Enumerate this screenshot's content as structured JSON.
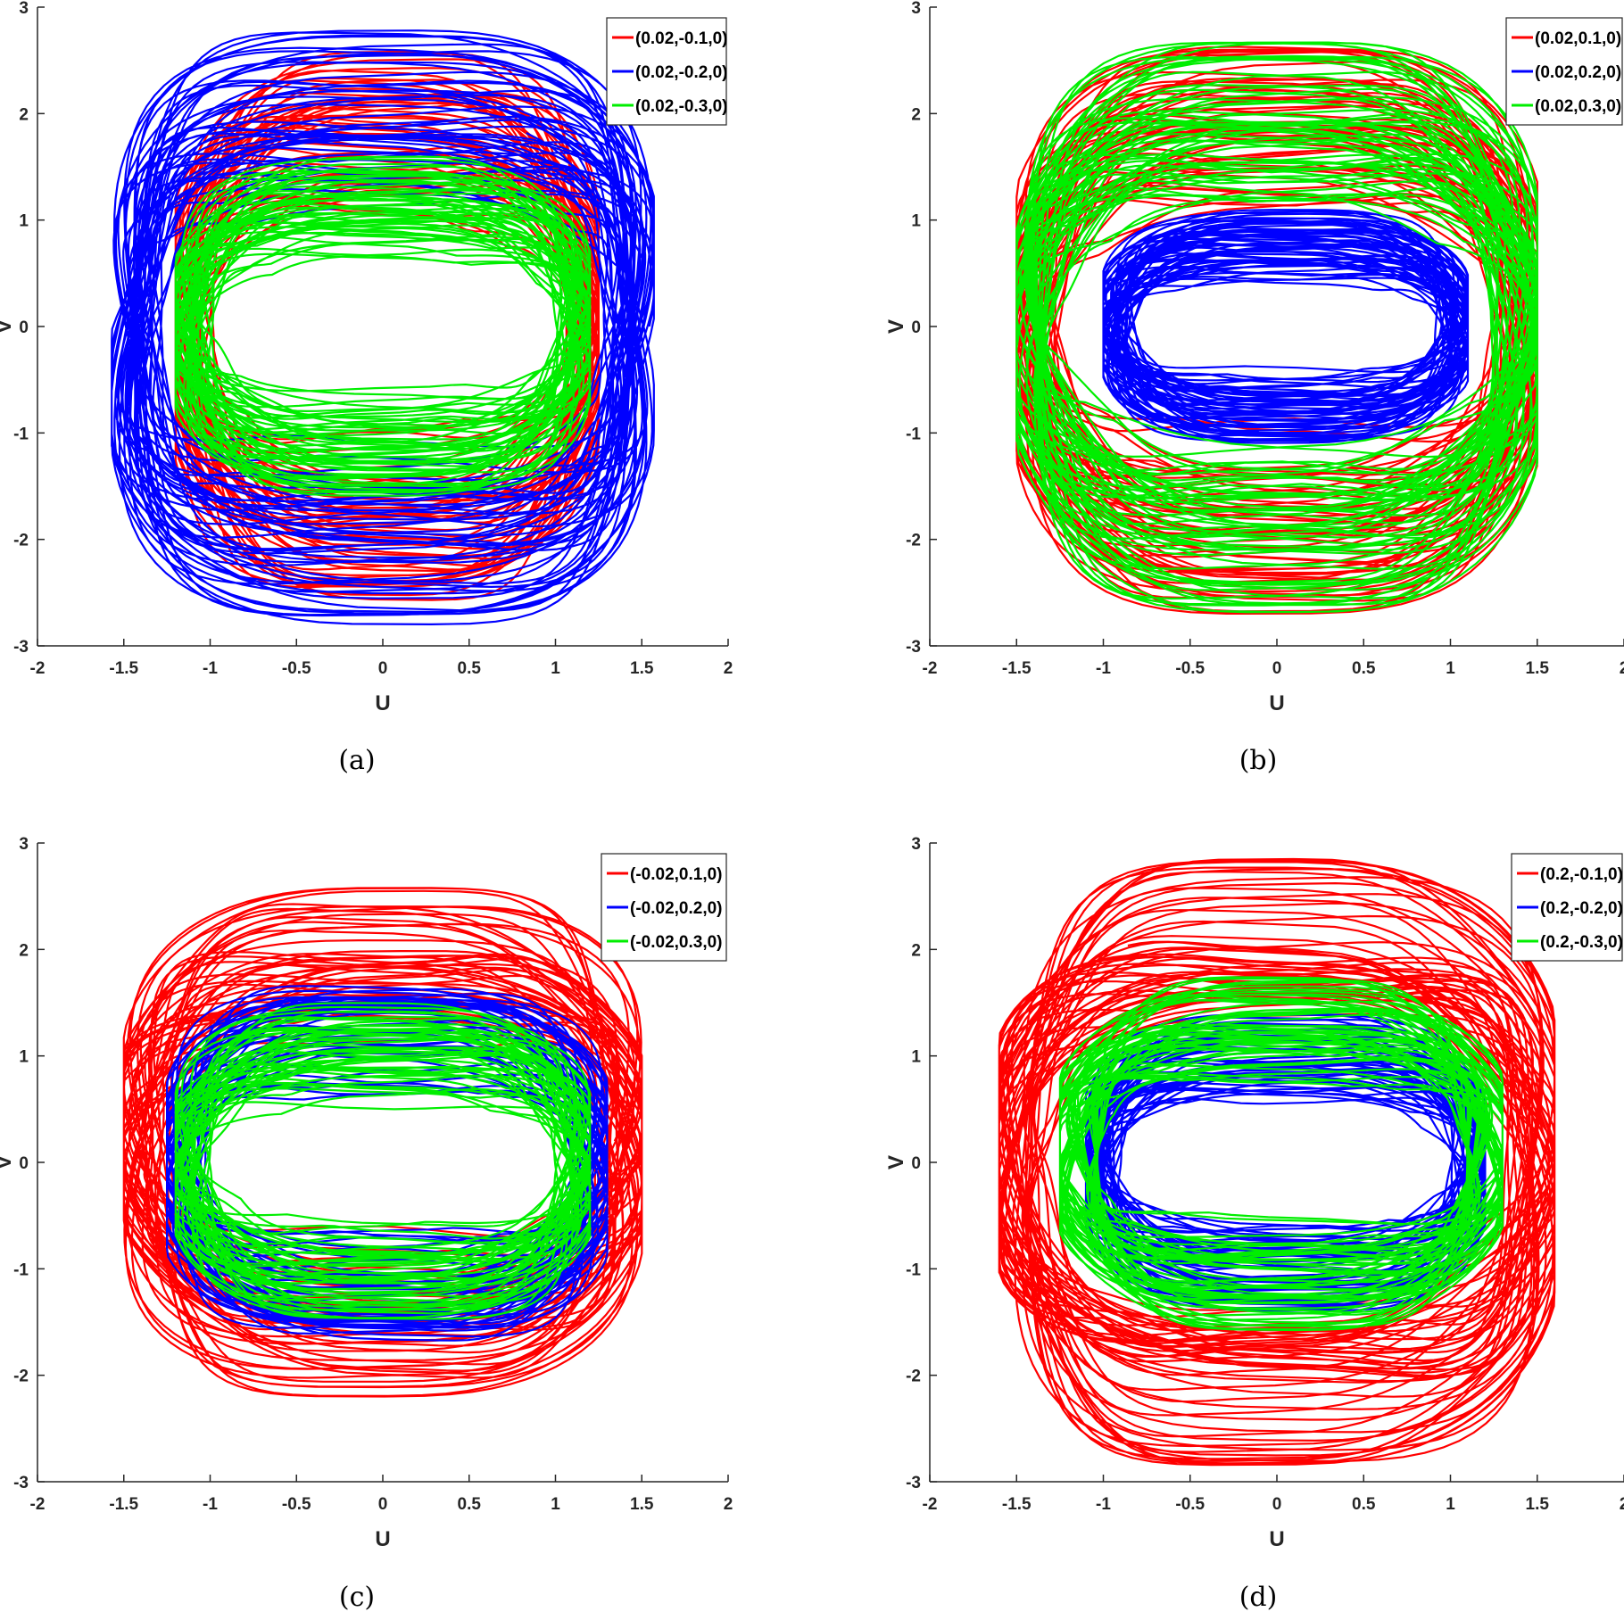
{
  "chart_data": [
    {
      "type": "line",
      "caption": "(a)",
      "xlabel": "U",
      "ylabel": "V",
      "xlim": [
        -2,
        2
      ],
      "ylim": [
        -3,
        3
      ],
      "xticks": [
        "-2",
        "-1.5",
        "-1",
        "-0.5",
        "0",
        "0.5",
        "1",
        "1.5",
        "2"
      ],
      "yticks": [
        "-3",
        "-2",
        "-1",
        "0",
        "1",
        "2",
        "3"
      ],
      "grid": false,
      "legend_position": "top-right",
      "series": [
        {
          "name": "(0.02,-0.1,0)",
          "color": "#ff0000",
          "u_extent": [
            -1.2,
            1.25
          ],
          "v_extent": [
            -2.6,
            2.6
          ]
        },
        {
          "name": "(0.02,-0.2,0)",
          "color": "#0000ff",
          "u_extent": [
            -1.57,
            1.57
          ],
          "v_extent": [
            -2.8,
            2.8
          ]
        },
        {
          "name": "(0.02,-0.3,0)",
          "color": "#00ee00",
          "u_extent": [
            -1.2,
            1.2
          ],
          "v_extent": [
            -1.6,
            1.6
          ]
        }
      ]
    },
    {
      "type": "line",
      "caption": "(b)",
      "xlabel": "U",
      "ylabel": "V",
      "xlim": [
        -2,
        2
      ],
      "ylim": [
        -3,
        3
      ],
      "xticks": [
        "-2",
        "-1.5",
        "-1",
        "-0.5",
        "0",
        "0.5",
        "1",
        "1.5",
        "2"
      ],
      "yticks": [
        "-3",
        "-2",
        "-1",
        "0",
        "1",
        "2",
        "3"
      ],
      "grid": false,
      "legend_position": "top-right",
      "series": [
        {
          "name": "(0.02,0.1,0)",
          "color": "#ff0000",
          "u_extent": [
            -1.5,
            1.5
          ],
          "v_extent": [
            -2.7,
            2.7
          ]
        },
        {
          "name": "(0.02,0.2,0)",
          "color": "#0000ff",
          "u_extent": [
            -1.0,
            1.1
          ],
          "v_extent": [
            -1.1,
            1.1
          ]
        },
        {
          "name": "(0.02,0.3,0)",
          "color": "#00ee00",
          "u_extent": [
            -1.5,
            1.5
          ],
          "v_extent": [
            -2.7,
            2.7
          ]
        }
      ]
    },
    {
      "type": "line",
      "caption": "(c)",
      "xlabel": "U",
      "ylabel": "V",
      "xlim": [
        -2,
        2
      ],
      "ylim": [
        -3,
        3
      ],
      "xticks": [
        "-2",
        "-1.5",
        "-1",
        "-0.5",
        "0",
        "0.5",
        "1",
        "1.5",
        "2"
      ],
      "yticks": [
        "-3",
        "-2",
        "-1",
        "0",
        "1",
        "2",
        "3"
      ],
      "grid": false,
      "legend_position": "top-right",
      "series": [
        {
          "name": "(-0.02,0.1,0)",
          "color": "#ff0000",
          "u_extent": [
            -1.5,
            1.5
          ],
          "v_extent": [
            -2.2,
            2.6
          ]
        },
        {
          "name": "(-0.02,0.2,0)",
          "color": "#0000ff",
          "u_extent": [
            -1.25,
            1.3
          ],
          "v_extent": [
            -1.75,
            1.75
          ]
        },
        {
          "name": "(-0.02,0.3,0)",
          "color": "#00ee00",
          "u_extent": [
            -1.2,
            1.2
          ],
          "v_extent": [
            -1.5,
            1.5
          ]
        }
      ]
    },
    {
      "type": "line",
      "caption": "(d)",
      "xlabel": "U",
      "ylabel": "V",
      "xlim": [
        -2,
        2
      ],
      "ylim": [
        -3,
        3
      ],
      "xticks": [
        "-2",
        "-1.5",
        "-1",
        "-0.5",
        "0",
        "0.5",
        "1",
        "1.5",
        "2"
      ],
      "yticks": [
        "-3",
        "-2",
        "-1",
        "0",
        "1",
        "2",
        "3"
      ],
      "grid": false,
      "legend_position": "top-right",
      "series": [
        {
          "name": "(0.2,-0.1,0)",
          "color": "#ff0000",
          "u_extent": [
            -1.6,
            1.6
          ],
          "v_extent": [
            -2.85,
            2.85
          ]
        },
        {
          "name": "(0.2,-0.2,0)",
          "color": "#0000ff",
          "u_extent": [
            -1.1,
            1.2
          ],
          "v_extent": [
            -1.4,
            1.4
          ]
        },
        {
          "name": "(0.2,-0.3,0)",
          "color": "#00ee00",
          "u_extent": [
            -1.25,
            1.3
          ],
          "v_extent": [
            -1.6,
            1.75
          ]
        }
      ]
    }
  ]
}
